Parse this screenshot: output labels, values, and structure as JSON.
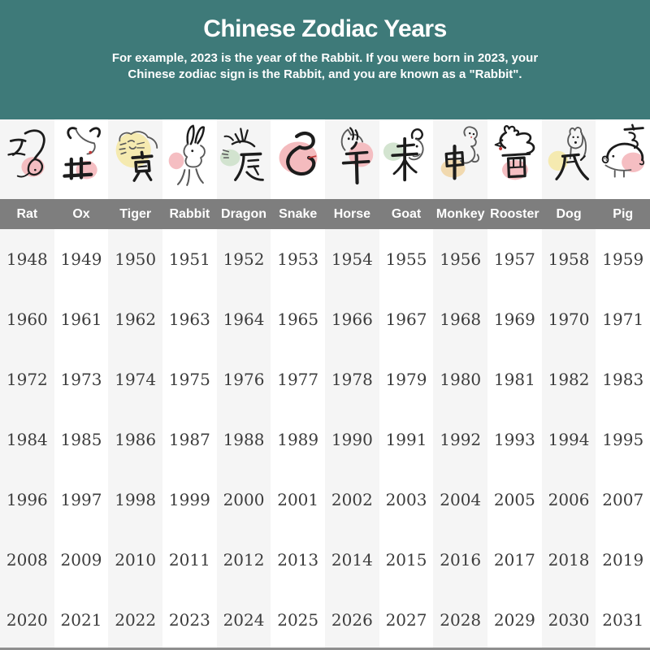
{
  "header": {
    "title": "Chinese Zodiac Years",
    "subtitle_line1": "For example, 2023 is the year of the Rabbit. If you were born in 2023, your",
    "subtitle_line2": "Chinese zodiac sign is the Rabbit, and you are known as a \"Rabbit\"."
  },
  "chart_data": {
    "type": "table",
    "title": "Chinese Zodiac Years",
    "columns": [
      "Rat",
      "Ox",
      "Tiger",
      "Rabbit",
      "Dragon",
      "Snake",
      "Horse",
      "Goat",
      "Monkey",
      "Rooster",
      "Dog",
      "Pig"
    ],
    "zodiac_characters": [
      "子",
      "丑",
      "寅",
      "卯",
      "辰",
      "巳",
      "午",
      "未",
      "申",
      "酉",
      "戌",
      "亥"
    ],
    "rows": [
      [
        1948,
        1949,
        1950,
        1951,
        1952,
        1953,
        1954,
        1955,
        1956,
        1957,
        1958,
        1959
      ],
      [
        1960,
        1961,
        1962,
        1963,
        1964,
        1965,
        1966,
        1967,
        1968,
        1969,
        1970,
        1971
      ],
      [
        1972,
        1973,
        1974,
        1975,
        1976,
        1977,
        1978,
        1979,
        1980,
        1981,
        1982,
        1983
      ],
      [
        1984,
        1985,
        1986,
        1987,
        1988,
        1989,
        1990,
        1991,
        1992,
        1993,
        1994,
        1995
      ],
      [
        1996,
        1997,
        1998,
        1999,
        2000,
        2001,
        2002,
        2003,
        2004,
        2005,
        2006,
        2007
      ],
      [
        2008,
        2009,
        2010,
        2011,
        2012,
        2013,
        2014,
        2015,
        2016,
        2017,
        2018,
        2019
      ],
      [
        2020,
        2021,
        2022,
        2023,
        2024,
        2025,
        2026,
        2027,
        2028,
        2029,
        2030,
        2031
      ]
    ]
  },
  "icons": {
    "blob_colors": [
      "#F3B3B7",
      "#F3B3B7",
      "#F5E8A3",
      "#F3B3B7",
      "#CBDFC8",
      "#F2AFB3",
      "#F3B3B7",
      "#CBDFC8",
      "#F0D3A2",
      "#F3B3B7",
      "#F5E8A3",
      "#F3B3B7"
    ]
  },
  "colors": {
    "header_bg": "#3E7A79",
    "name_band_bg": "#7E7E7E",
    "column_stripe": "#F5F5F5",
    "year_text": "#3C3C3C",
    "ink": "#1C1C1C",
    "sketch_gray": "#5A5A5A",
    "accent_red": "#C23B3B",
    "bottom_bar": "#8F8F8F"
  }
}
